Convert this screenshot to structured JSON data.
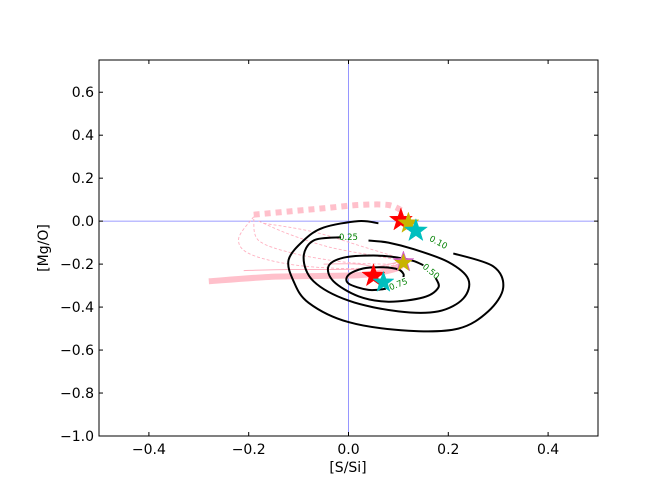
{
  "chart_data": {
    "type": "scatter",
    "xlabel": "[S/Si]",
    "ylabel": "[Mg/O]",
    "xlim": [
      -0.5,
      0.5
    ],
    "ylim": [
      -1.0,
      0.75
    ],
    "xticks": [
      -0.4,
      -0.2,
      0.0,
      0.2,
      0.4
    ],
    "xtick_labels": [
      "−0.4",
      "−0.2",
      "0.0",
      "0.2",
      "0.4"
    ],
    "yticks": [
      -1.0,
      -0.8,
      -0.6,
      -0.4,
      -0.2,
      0.0,
      0.2,
      0.4,
      0.6
    ],
    "ytick_labels": [
      "−1.0",
      "−0.8",
      "−0.6",
      "−0.4",
      "−0.2",
      "0.0",
      "0.2",
      "0.4",
      "0.6"
    ],
    "grid": false,
    "reference_lines": {
      "x": 0.0,
      "y": 0.0,
      "color": "#7b7bff"
    },
    "contours": [
      {
        "level_label": "0.10",
        "label_at": [
          0.18,
          -0.1
        ],
        "label_rot": 28,
        "open": true,
        "points": [
          [
            0.21,
            -0.15
          ],
          [
            0.29,
            -0.21
          ],
          [
            0.31,
            -0.31
          ],
          [
            0.28,
            -0.42
          ],
          [
            0.22,
            -0.5
          ],
          [
            0.12,
            -0.51
          ],
          [
            0.0,
            -0.47
          ],
          [
            -0.08,
            -0.38
          ],
          [
            -0.11,
            -0.28
          ],
          [
            -0.12,
            -0.18
          ],
          [
            -0.09,
            -0.09
          ],
          [
            -0.05,
            -0.03
          ],
          [
            0.02,
            0.0
          ],
          [
            0.06,
            -0.01
          ]
        ]
      },
      {
        "level_label": "0.25",
        "label_at": [
          0.0,
          -0.075
        ],
        "label_rot": 0,
        "open": true,
        "points": [
          [
            -0.015,
            -0.075
          ],
          [
            -0.07,
            -0.09
          ],
          [
            -0.09,
            -0.17
          ],
          [
            -0.07,
            -0.28
          ],
          [
            0.0,
            -0.37
          ],
          [
            0.1,
            -0.42
          ],
          [
            0.18,
            -0.42
          ],
          [
            0.23,
            -0.36
          ],
          [
            0.24,
            -0.27
          ],
          [
            0.2,
            -0.19
          ],
          [
            0.13,
            -0.13
          ],
          [
            0.08,
            -0.1
          ],
          [
            0.04,
            -0.09
          ]
        ]
      },
      {
        "level_label": "0.50",
        "label_at": [
          0.165,
          -0.235
        ],
        "label_rot": 40,
        "open": true,
        "points": [
          [
            0.175,
            -0.265
          ],
          [
            0.18,
            -0.31
          ],
          [
            0.15,
            -0.355
          ],
          [
            0.08,
            -0.375
          ],
          [
            0.02,
            -0.35
          ],
          [
            -0.03,
            -0.28
          ],
          [
            -0.04,
            -0.21
          ],
          [
            -0.01,
            -0.17
          ],
          [
            0.05,
            -0.16
          ],
          [
            0.1,
            -0.17
          ],
          [
            0.13,
            -0.185
          ],
          [
            0.15,
            -0.205
          ]
        ]
      },
      {
        "level_label": "0.75",
        "label_at": [
          0.1,
          -0.295
        ],
        "label_rot": -22,
        "open": true,
        "points": [
          [
            0.075,
            -0.315
          ],
          [
            0.04,
            -0.32
          ],
          [
            0.0,
            -0.29
          ],
          [
            0.0,
            -0.25
          ],
          [
            0.03,
            -0.22
          ],
          [
            0.07,
            -0.215
          ],
          [
            0.1,
            -0.225
          ],
          [
            0.11,
            -0.245
          ],
          [
            0.11,
            -0.26
          ]
        ]
      }
    ],
    "tracks": [
      {
        "style": "dotted-thick",
        "color": "#ffc0cb",
        "points": [
          [
            -0.19,
            0.03
          ],
          [
            -0.12,
            0.045
          ],
          [
            -0.05,
            0.06
          ],
          [
            0.02,
            0.075
          ],
          [
            0.08,
            0.075
          ],
          [
            0.11,
            0.045
          ]
        ]
      },
      {
        "style": "solid-thick",
        "color": "#ffc0cb",
        "points": [
          [
            -0.28,
            -0.28
          ],
          [
            -0.16,
            -0.26
          ],
          [
            -0.05,
            -0.255
          ],
          [
            0.03,
            -0.25
          ],
          [
            0.09,
            -0.225
          ],
          [
            0.11,
            -0.2
          ]
        ]
      },
      {
        "style": "dotted-thin",
        "color": "#ffb0c0",
        "points": [
          [
            -0.19,
            0.02
          ],
          [
            -0.22,
            -0.08
          ],
          [
            -0.2,
            -0.15
          ],
          [
            -0.12,
            -0.2
          ],
          [
            -0.02,
            -0.22
          ],
          [
            0.06,
            -0.215
          ],
          [
            0.1,
            -0.2
          ]
        ]
      },
      {
        "style": "dotted-thin",
        "color": "#ffb0c0",
        "points": [
          [
            -0.19,
            0.01
          ],
          [
            -0.18,
            -0.09
          ],
          [
            -0.11,
            -0.15
          ],
          [
            -0.01,
            -0.19
          ],
          [
            0.07,
            -0.2
          ],
          [
            0.1,
            -0.195
          ]
        ]
      },
      {
        "style": "dotted-thin",
        "color": "#ffb0c0",
        "points": [
          [
            -0.18,
            0.0
          ],
          [
            -0.12,
            -0.06
          ],
          [
            -0.04,
            -0.12
          ],
          [
            0.05,
            -0.16
          ],
          [
            0.1,
            -0.18
          ]
        ]
      },
      {
        "style": "dotted-thin",
        "color": "#ffb0c0",
        "points": [
          [
            -0.17,
            -0.01
          ],
          [
            -0.07,
            -0.05
          ],
          [
            0.03,
            -0.12
          ],
          [
            0.1,
            -0.17
          ]
        ]
      },
      {
        "style": "solid-thin",
        "color": "#ffb0c0",
        "points": [
          [
            -0.21,
            -0.23
          ],
          [
            -0.12,
            -0.225
          ],
          [
            -0.03,
            -0.225
          ],
          [
            0.04,
            -0.22
          ],
          [
            0.1,
            -0.19
          ]
        ]
      },
      {
        "style": "solid-thin",
        "color": "#ffb0c0",
        "points": [
          [
            -0.05,
            -0.2
          ],
          [
            0.02,
            -0.2
          ],
          [
            0.07,
            -0.22
          ],
          [
            0.1,
            -0.2
          ]
        ]
      }
    ],
    "stars": [
      {
        "x": 0.105,
        "y": 0.005,
        "color": "#ff0000",
        "size": 12
      },
      {
        "x": 0.12,
        "y": -0.01,
        "color": "#c8b400",
        "size": 11
      },
      {
        "x": 0.135,
        "y": -0.045,
        "color": "#00bfbf",
        "size": 12
      },
      {
        "x": 0.11,
        "y": -0.19,
        "color": "#d060c0",
        "size": 11
      },
      {
        "x": 0.11,
        "y": -0.195,
        "color": "#c8b400",
        "size": 9
      },
      {
        "x": 0.05,
        "y": -0.255,
        "color": "#ff0000",
        "size": 12
      },
      {
        "x": 0.07,
        "y": -0.285,
        "color": "#00bfbf",
        "size": 11
      }
    ]
  }
}
